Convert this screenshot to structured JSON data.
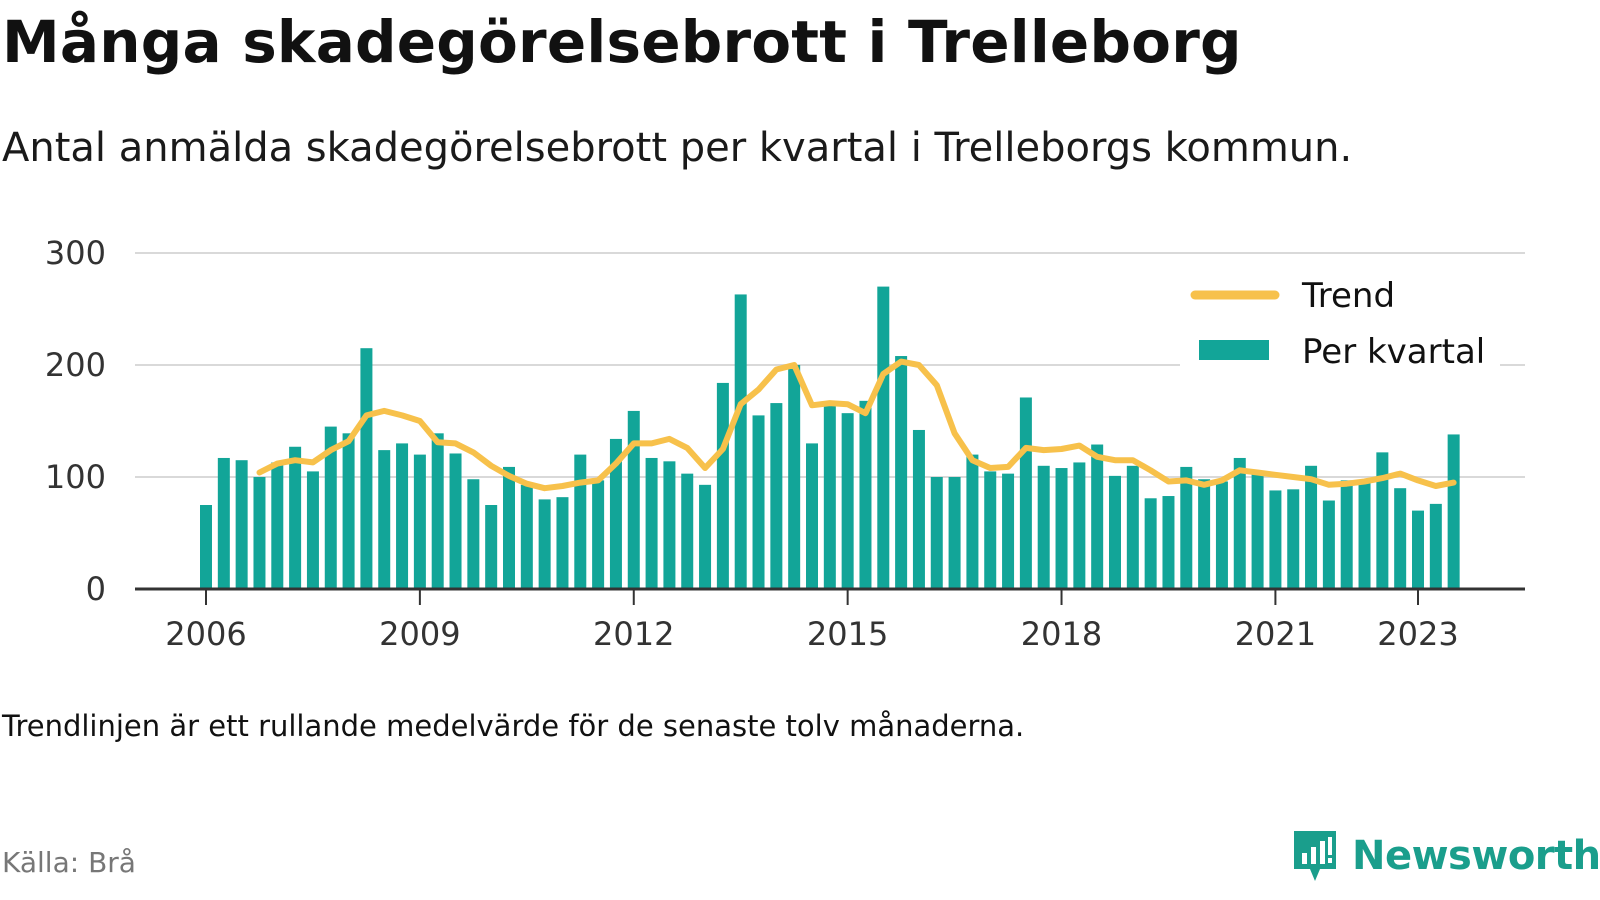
{
  "title": "Många skadegörelsebrott i Trelleborg",
  "subtitle": "Antal anmälda skadegörelsebrott per kvartal i Trelleborgs kommun.",
  "note": "Trendlinjen är ett rullande medelvärde för de senaste tolv månaderna.",
  "source": "Källa: Brå",
  "brand": {
    "name": "Newsworthy",
    "icon": "newsworthy-logo-icon",
    "color": "#1a9e8c"
  },
  "colors": {
    "bars": "#12a598",
    "trend": "#f7c14b",
    "grid": "#d9d9d9",
    "axis": "#333333"
  },
  "chart_data": {
    "type": "bar",
    "grid": true,
    "legend_position": "top-right",
    "ylim": [
      0,
      300
    ],
    "y_ticks": [
      "0",
      "100",
      "200",
      "300"
    ],
    "x_ticks": [
      "2006",
      "2009",
      "2012",
      "2015",
      "2018",
      "2021",
      "2023"
    ],
    "x_labels_pos": [
      2006,
      2009,
      2012,
      2015,
      2018,
      2021,
      2023
    ],
    "series": [
      {
        "name": "Per kvartal",
        "type": "bar",
        "x": [
          2006.0,
          2006.25,
          2006.5,
          2006.75,
          2007.0,
          2007.25,
          2007.5,
          2007.75,
          2008.0,
          2008.25,
          2008.5,
          2008.75,
          2009.0,
          2009.25,
          2009.5,
          2009.75,
          2010.0,
          2010.25,
          2010.5,
          2010.75,
          2011.0,
          2011.25,
          2011.5,
          2011.75,
          2012.0,
          2012.25,
          2012.5,
          2012.75,
          2013.0,
          2013.25,
          2013.5,
          2013.75,
          2014.0,
          2014.25,
          2014.5,
          2014.75,
          2015.0,
          2015.25,
          2015.5,
          2015.75,
          2016.0,
          2016.25,
          2016.5,
          2016.75,
          2017.0,
          2017.25,
          2017.5,
          2017.75,
          2018.0,
          2018.25,
          2018.5,
          2018.75,
          2019.0,
          2019.25,
          2019.5,
          2019.75,
          2020.0,
          2020.25,
          2020.5,
          2020.75,
          2021.0,
          2021.25,
          2021.5,
          2021.75,
          2022.0,
          2022.25,
          2022.5,
          2022.75,
          2023.0,
          2023.25,
          2023.5
        ],
        "values": [
          75,
          117,
          115,
          100,
          113,
          127,
          105,
          145,
          139,
          215,
          124,
          130,
          120,
          139,
          121,
          98,
          75,
          109,
          93,
          80,
          82,
          120,
          97,
          134,
          159,
          117,
          114,
          103,
          93,
          184,
          263,
          155,
          166,
          200,
          130,
          166,
          157,
          168,
          270,
          208,
          142,
          100,
          100,
          120,
          105,
          103,
          171,
          110,
          108,
          113,
          129,
          101,
          110,
          81,
          83,
          109,
          98,
          96,
          117,
          103,
          88,
          89,
          110,
          79,
          97,
          97,
          122,
          90,
          70,
          76,
          138
        ]
      },
      {
        "name": "Trend",
        "type": "line",
        "x": [
          2006.75,
          2007.0,
          2007.25,
          2007.5,
          2007.75,
          2008.0,
          2008.25,
          2008.5,
          2008.75,
          2009.0,
          2009.25,
          2009.5,
          2009.75,
          2010.0,
          2010.25,
          2010.5,
          2010.75,
          2011.0,
          2011.25,
          2011.5,
          2011.75,
          2012.0,
          2012.25,
          2012.5,
          2012.75,
          2013.0,
          2013.25,
          2013.5,
          2013.75,
          2014.0,
          2014.25,
          2014.5,
          2014.75,
          2015.0,
          2015.25,
          2015.5,
          2015.75,
          2016.0,
          2016.25,
          2016.5,
          2016.75,
          2017.0,
          2017.25,
          2017.5,
          2017.75,
          2018.0,
          2018.25,
          2018.5,
          2018.75,
          2019.0,
          2019.25,
          2019.5,
          2019.75,
          2020.0,
          2020.25,
          2020.5,
          2020.75,
          2021.0,
          2021.25,
          2021.5,
          2021.75,
          2022.0,
          2022.25,
          2022.5,
          2022.75,
          2023.0,
          2023.25,
          2023.5
        ],
        "values": [
          104,
          112,
          115,
          113,
          124,
          132,
          155,
          159,
          155,
          150,
          131,
          130,
          122,
          110,
          101,
          94,
          90,
          92,
          95,
          97,
          112,
          130,
          130,
          134,
          126,
          108,
          125,
          165,
          178,
          196,
          200,
          164,
          166,
          165,
          157,
          192,
          203,
          200,
          182,
          139,
          115,
          108,
          109,
          126,
          124,
          125,
          128,
          118,
          115,
          115,
          106,
          96,
          97,
          93,
          97,
          106,
          104,
          102,
          100,
          98,
          93,
          94,
          96,
          99,
          103,
          97,
          92,
          95
        ]
      }
    ]
  }
}
